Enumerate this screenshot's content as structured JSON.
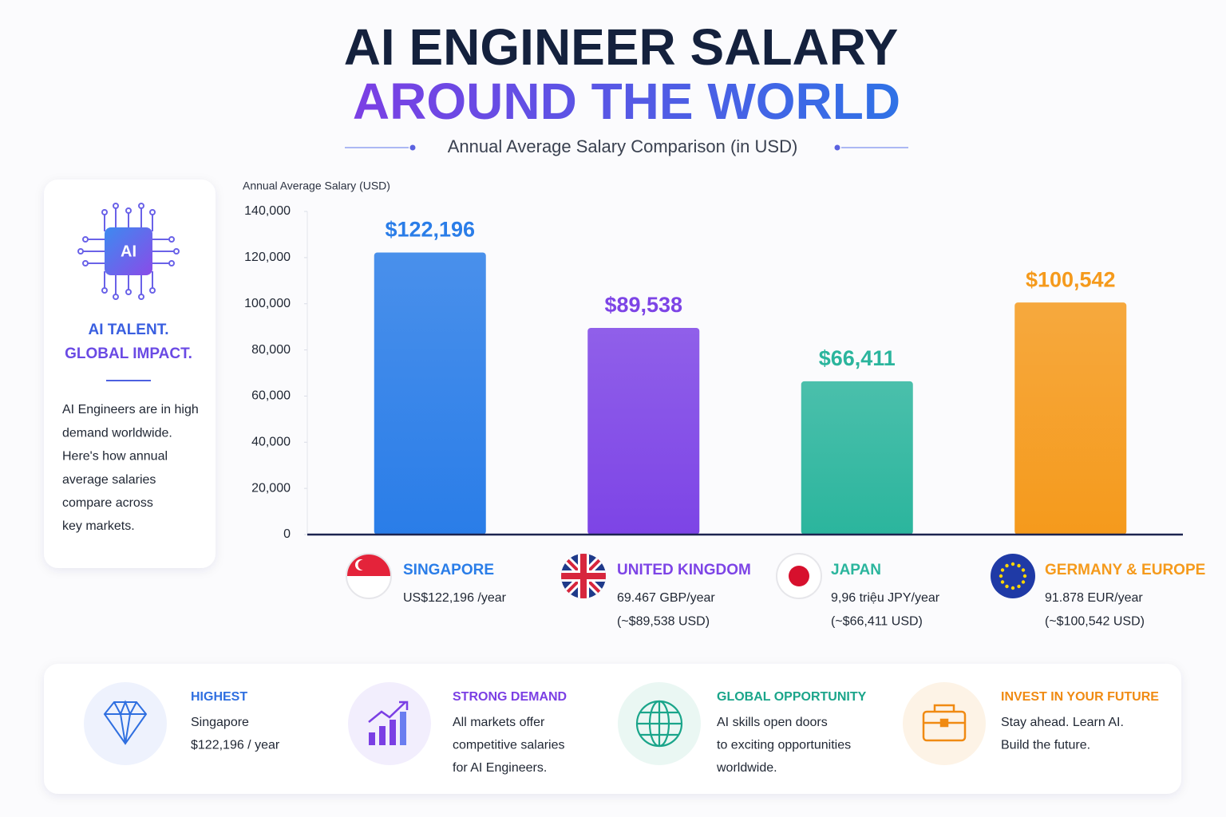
{
  "header": {
    "title_line1": "AI ENGINEER SALARY",
    "title_line2": "AROUND THE WORLD",
    "subtitle": "Annual Average Salary Comparison (in USD)"
  },
  "sidebar": {
    "icon_label": "AI",
    "heading_line1": "AI TALENT.",
    "heading_line2": "GLOBAL IMPACT.",
    "lines": [
      "AI Engineers are in high",
      "demand worldwide.",
      "Here's how annual",
      "average salaries",
      "compare across",
      "key markets."
    ]
  },
  "chart_data": {
    "type": "bar",
    "y_label": "Annual Average Salary (USD)",
    "categories": [
      "SINGAPORE",
      "UNITED KINGDOM",
      "JAPAN",
      "GERMANY & EUROPE"
    ],
    "values": [
      122196,
      89538,
      66411,
      100542
    ],
    "value_labels": [
      "$122,196",
      "$89,538",
      "$66,411",
      "$100,542"
    ],
    "colors": [
      "#2a7de8",
      "#7d44e6",
      "#2bb59d",
      "#f59a1c"
    ],
    "ylim": [
      0,
      140000
    ],
    "yticks": [
      0,
      {
        "value": 20000,
        "label": "20,000"
      },
      {
        "value": 40000,
        "label": "40,000"
      },
      {
        "value": 60000,
        "label": "60,000"
      },
      {
        "value": 80000,
        "label": "80,000"
      },
      {
        "value": 100000,
        "label": "100,000"
      },
      {
        "value": 120000,
        "label": "120,000"
      },
      {
        "value": 140000,
        "label": "140,000"
      }
    ],
    "category_notes": [
      [
        "US$122,196 /year"
      ],
      [
        "69.467 GBP/year",
        "(~$89,538 USD)"
      ],
      [
        "9,96 triệu JPY/year",
        "(~$66,411 USD)"
      ],
      [
        "91.878 EUR/year",
        "(~$100,542 USD)"
      ]
    ]
  },
  "highlights": [
    {
      "title": "HIGHEST",
      "lines": [
        "Singapore",
        "$122,196 / year"
      ],
      "color": "#2f6fe0"
    },
    {
      "title": "STRONG DEMAND",
      "lines": [
        "All markets offer",
        "competitive salaries",
        "for AI Engineers."
      ],
      "color": "#7b3fe4"
    },
    {
      "title": "GLOBAL OPPORTUNITY",
      "lines": [
        "AI skills open doors",
        "to exciting opportunities",
        "worldwide."
      ],
      "color": "#1aa58a"
    },
    {
      "title": "INVEST IN YOUR FUTURE",
      "lines": [
        "Stay ahead. Learn AI.",
        "Build the future."
      ],
      "color": "#f08a12"
    }
  ]
}
